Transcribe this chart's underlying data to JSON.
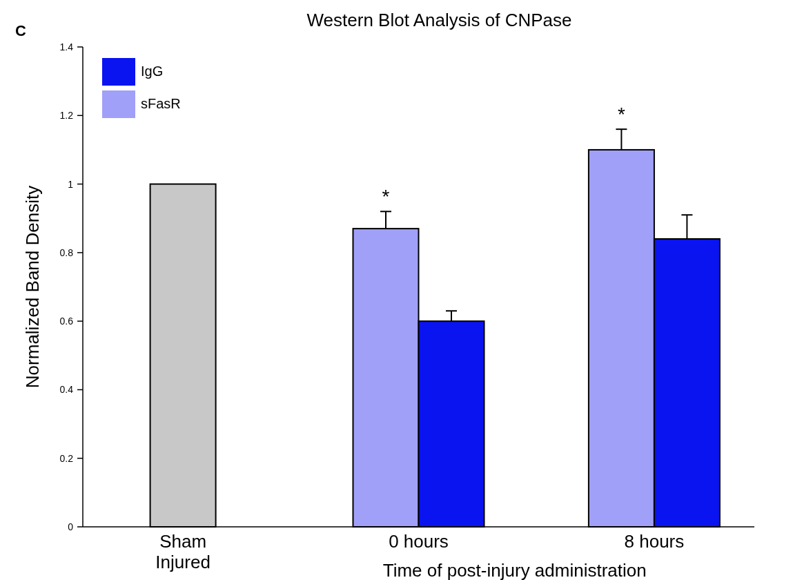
{
  "chart_data": {
    "type": "bar",
    "title": "Western Blot Analysis of CNPase",
    "xlabel": "Time of post-injury administration",
    "ylabel": "Normalized Band Density",
    "categories": [
      "Sham\nInjured",
      "0 hours",
      "8 hours"
    ],
    "series": [
      {
        "color": "#c8c8c8",
        "values": [
          1.0,
          null,
          null
        ]
      },
      {
        "name": "sFasR",
        "color": "#a0a0f8",
        "values": [
          null,
          0.87,
          1.1
        ],
        "errors": [
          null,
          [
            0.87,
            0.92
          ],
          [
            1.1,
            1.16
          ]
        ]
      },
      {
        "name": "IgG",
        "color": "#0a14f0",
        "values": [
          null,
          0.6,
          0.84
        ],
        "errors": [
          null,
          [
            0.6,
            0.63
          ],
          [
            0.84,
            0.91
          ]
        ]
      }
    ],
    "ylim": [
      0,
      1.4
    ],
    "yticks": [
      0,
      0.2,
      0.4,
      0.6,
      0.8,
      1,
      1.2,
      1.4
    ],
    "grid": false,
    "legend": "top left",
    "annotations": [
      "C",
      "*",
      "*"
    ]
  }
}
